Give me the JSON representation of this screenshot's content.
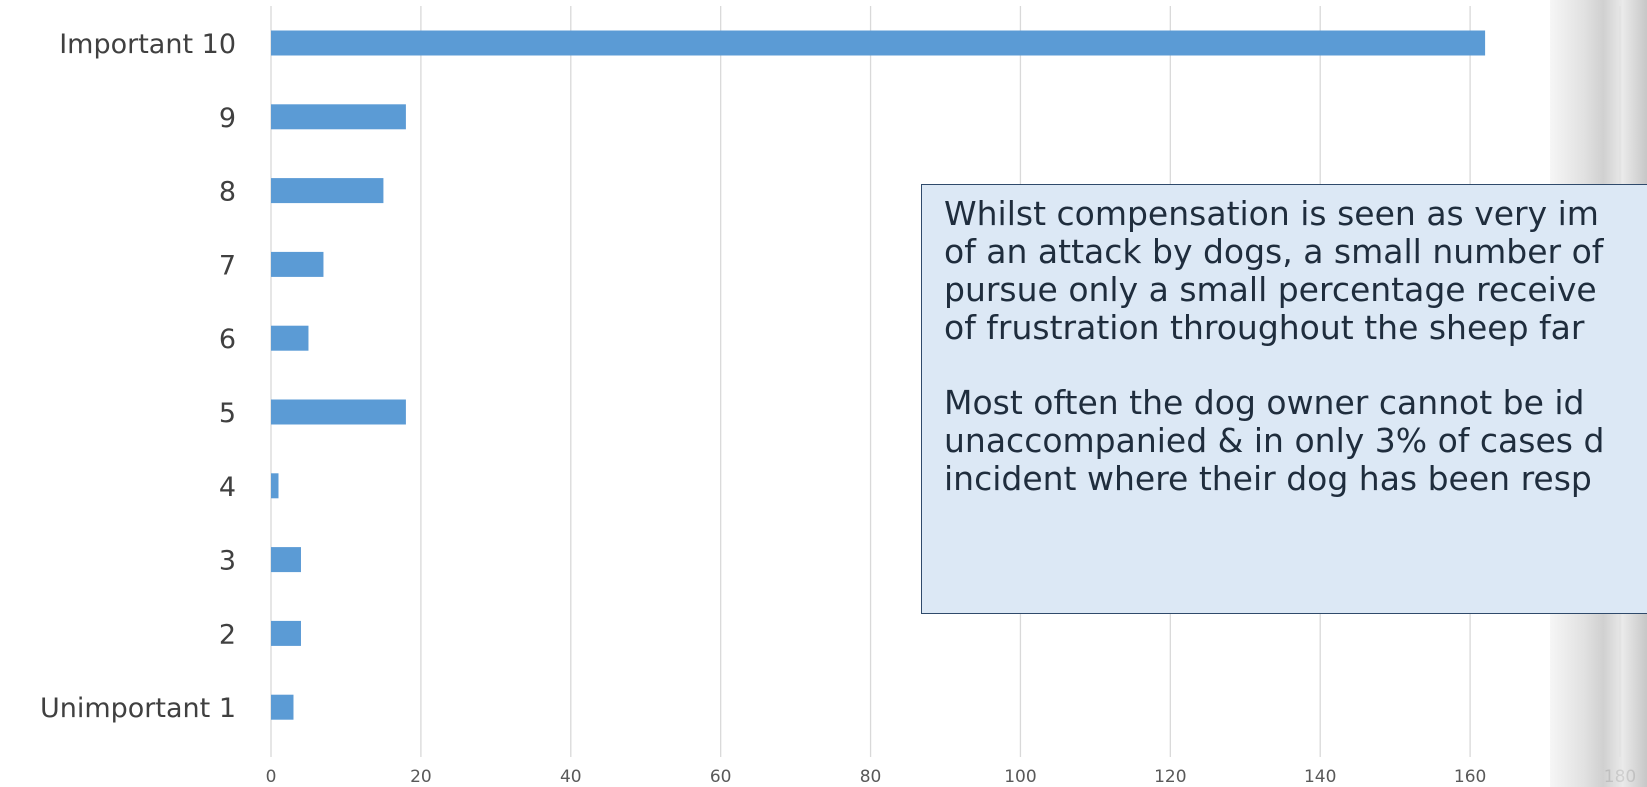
{
  "chart_data": {
    "type": "bar",
    "orientation": "horizontal",
    "categories": [
      "Important 10",
      "9",
      "8",
      "7",
      "6",
      "5",
      "4",
      "3",
      "2",
      "Unimportant 1"
    ],
    "values": [
      162,
      18,
      15,
      7,
      5,
      18,
      1,
      4,
      4,
      3
    ],
    "title": "",
    "xlabel": "",
    "ylabel": "",
    "xlim": [
      0,
      180
    ],
    "x_ticks": [
      0,
      20,
      40,
      60,
      80,
      100,
      120,
      140,
      160,
      180
    ],
    "grid": true,
    "bar_color": "#5b9bd5"
  },
  "annotation": {
    "paragraph1": [
      "Whilst compensation is seen as very im",
      "of an attack by dogs, a small number of",
      "pursue only a small percentage receive",
      "of frustration throughout the sheep far"
    ],
    "paragraph2": [
      "Most often the dog owner cannot be id",
      "unaccompanied & in only 3% of cases d",
      "incident where their dog has been resp"
    ]
  }
}
